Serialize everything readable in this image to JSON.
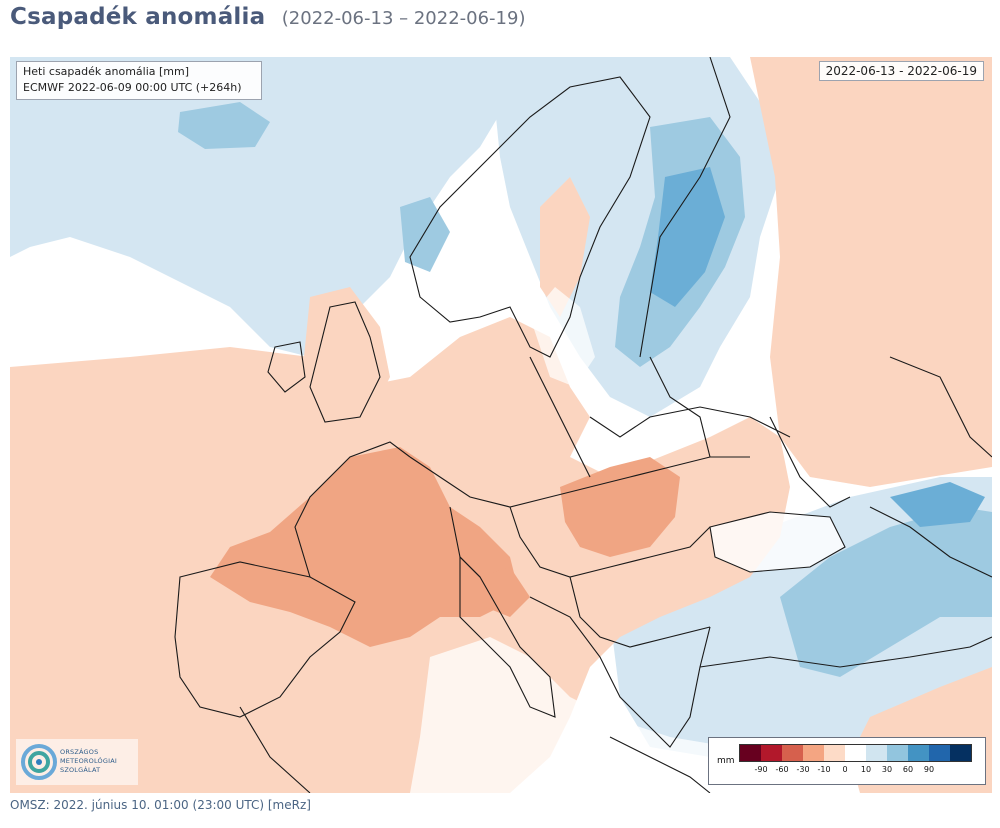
{
  "header": {
    "title": "Csapadék anomália",
    "period": "(2022-06-13 – 2022-06-19)"
  },
  "map": {
    "info_box": {
      "line1": "Heti csapadék anomália [mm]",
      "line2": "ECMWF 2022-06-09 00:00 UTC (+264h)"
    },
    "date_label": "2022-06-13 - 2022-06-19",
    "colors": {
      "water_or_no_anomaly": "#ffffff",
      "dry_light": "#fbd5c0",
      "dry_medium": "#f0a583",
      "wet_light": "#d4e6f2",
      "wet_medium": "#9ecae1",
      "wet_strong": "#6baed6",
      "border_line": "#1a1a1a"
    },
    "legend": {
      "unit": "mm",
      "colors": [
        "#67001f",
        "#b2182b",
        "#d6604d",
        "#f4a582",
        "#fddbc7",
        "#ffffff",
        "#d1e5f0",
        "#92c5de",
        "#4393c3",
        "#2166ac",
        "#053061"
      ],
      "ticks": [
        "-90",
        "-60",
        "-30",
        "-10",
        "0",
        "10",
        "30",
        "60",
        "90"
      ]
    },
    "logo": {
      "lines": [
        "ORSZÁGOS",
        "METEOROLÓGIAI",
        "SZOLGÁLAT"
      ]
    }
  },
  "footer": {
    "text": "OMSZ: 2022. június 10. 01:00 (23:00  UTC)  [meRz]"
  }
}
